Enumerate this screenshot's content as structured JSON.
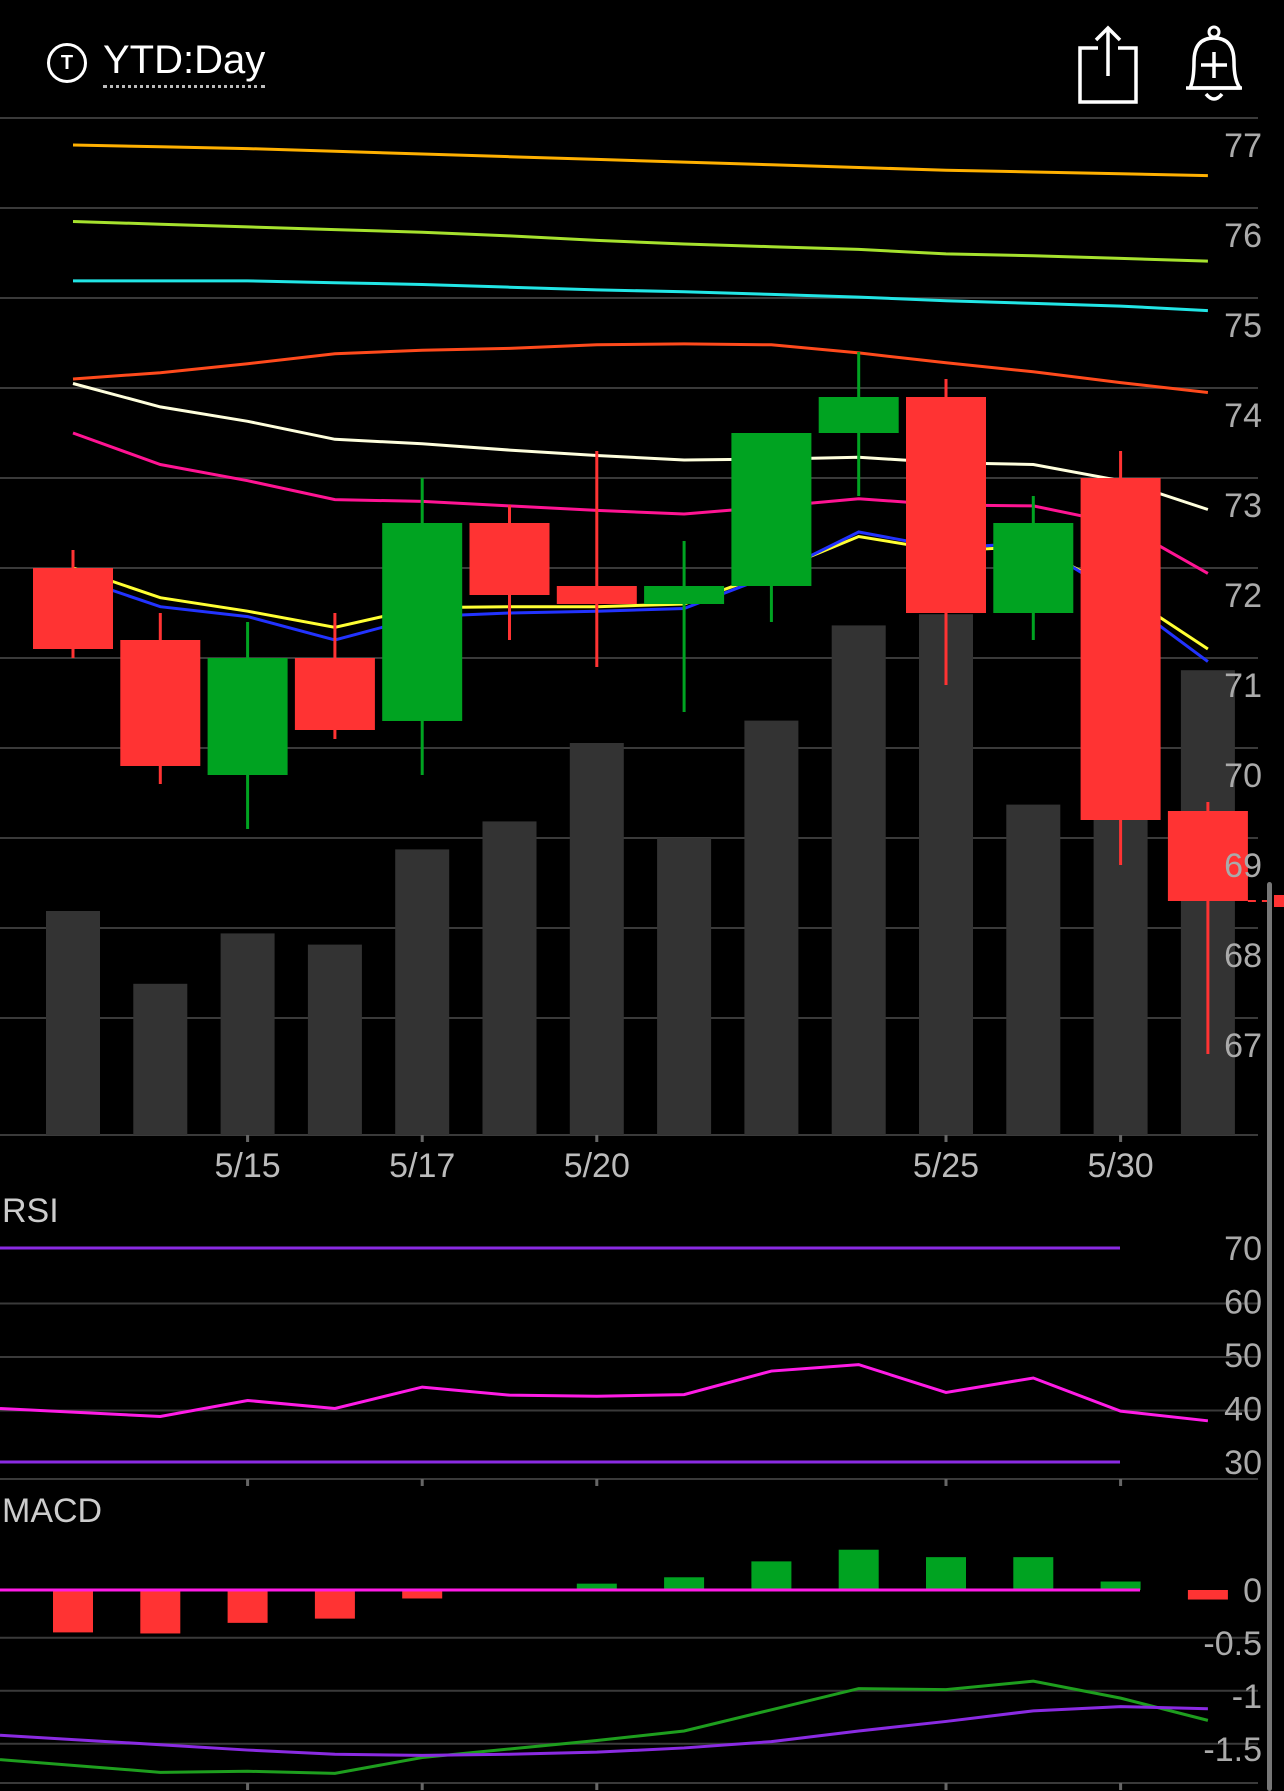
{
  "header": {
    "badge_letter": "T",
    "title": "YTD:Day",
    "share_icon": "share-icon",
    "alert_icon": "add-alert-icon"
  },
  "colors": {
    "up": "#00A321",
    "down": "#FF3333",
    "volume": "#333333",
    "grid": "#3A3A3A",
    "rsi_line": "#FF1CE6",
    "rsi_band": "#8A2BE2",
    "macd_line": "#1E9E1E",
    "macd_signal": "#8A2BE2",
    "macd_zero": "#FF1CE6",
    "last_price": "#FF3333"
  },
  "chart_data": [
    {
      "type": "candlestick",
      "ylim": [
        66,
        77.3
      ],
      "y_ticks": [
        77,
        76,
        75,
        74,
        73,
        72,
        71,
        70,
        69,
        68,
        67
      ],
      "x_labels": [
        "5/15",
        "5/17",
        "5/20",
        "5/25",
        "5/30"
      ],
      "x_label_index": [
        2,
        4,
        6,
        10,
        12
      ],
      "candles": [
        {
          "o": 72.3,
          "h": 72.5,
          "l": 71.3,
          "c": 71.4
        },
        {
          "o": 71.5,
          "h": 71.8,
          "l": 69.9,
          "c": 70.1
        },
        {
          "o": 70.0,
          "h": 71.7,
          "l": 69.4,
          "c": 71.3
        },
        {
          "o": 71.3,
          "h": 71.8,
          "l": 70.4,
          "c": 70.5
        },
        {
          "o": 70.6,
          "h": 73.3,
          "l": 70.0,
          "c": 72.8
        },
        {
          "o": 72.8,
          "h": 73.0,
          "l": 71.5,
          "c": 72.0
        },
        {
          "o": 72.1,
          "h": 73.6,
          "l": 71.2,
          "c": 71.9
        },
        {
          "o": 71.9,
          "h": 72.6,
          "l": 70.7,
          "c": 72.1
        },
        {
          "o": 72.1,
          "h": 73.8,
          "l": 71.7,
          "c": 73.8
        },
        {
          "o": 73.8,
          "h": 74.7,
          "l": 73.1,
          "c": 74.2
        },
        {
          "o": 74.2,
          "h": 74.4,
          "l": 71.0,
          "c": 71.8
        },
        {
          "o": 71.8,
          "h": 73.1,
          "l": 71.5,
          "c": 72.8
        },
        {
          "o": 73.3,
          "h": 73.6,
          "l": 69.0,
          "c": 69.5
        },
        {
          "o": 69.6,
          "h": 69.7,
          "l": 66.9,
          "c": 68.6
        }
      ],
      "volume_relative": [
        0.4,
        0.27,
        0.36,
        0.34,
        0.51,
        0.56,
        0.7,
        0.53,
        0.74,
        0.91,
        0.93,
        0.59,
        0.74,
        0.83
      ],
      "last_price": 68.6,
      "moving_averages": [
        {
          "color": "#FFB000",
          "values": [
            77.0,
            76.98,
            76.96,
            76.93,
            76.9,
            76.87,
            76.84,
            76.81,
            76.78,
            76.75,
            76.72,
            76.7,
            76.68,
            76.66
          ]
        },
        {
          "color": "#A6E22E",
          "values": [
            76.15,
            76.12,
            76.09,
            76.06,
            76.03,
            75.99,
            75.94,
            75.9,
            75.87,
            75.84,
            75.79,
            75.77,
            75.74,
            75.71
          ]
        },
        {
          "color": "#22E5E5",
          "values": [
            75.49,
            75.49,
            75.49,
            75.47,
            75.45,
            75.42,
            75.39,
            75.37,
            75.34,
            75.31,
            75.27,
            75.24,
            75.21,
            75.16
          ]
        },
        {
          "color": "#FF4A1C",
          "values": [
            74.4,
            74.47,
            74.57,
            74.68,
            74.72,
            74.74,
            74.78,
            74.79,
            74.78,
            74.69,
            74.58,
            74.48,
            74.36,
            74.25
          ]
        },
        {
          "color": "#FFFFDD",
          "values": [
            74.35,
            74.09,
            73.93,
            73.73,
            73.68,
            73.61,
            73.55,
            73.5,
            73.51,
            73.53,
            73.47,
            73.45,
            73.27,
            72.95
          ]
        },
        {
          "color": "#FF1493",
          "values": [
            73.8,
            73.45,
            73.27,
            73.06,
            73.04,
            72.99,
            72.94,
            72.9,
            72.98,
            73.07,
            73.0,
            72.99,
            72.79,
            72.24
          ]
        },
        {
          "color": "#FFFF33",
          "values": [
            72.3,
            71.97,
            71.82,
            71.64,
            71.86,
            71.87,
            71.87,
            71.9,
            72.25,
            72.65,
            72.49,
            72.54,
            72.04,
            71.4
          ]
        },
        {
          "color": "#2233FF",
          "values": [
            72.2,
            71.87,
            71.76,
            71.5,
            71.76,
            71.8,
            71.82,
            71.85,
            72.22,
            72.7,
            72.52,
            72.58,
            71.98,
            71.26
          ]
        }
      ]
    },
    {
      "type": "line",
      "title": "RSI",
      "ylim": [
        30,
        70
      ],
      "y_ticks": [
        70,
        60,
        50,
        40,
        30
      ],
      "bands": [
        70,
        30
      ],
      "values": [
        38.5,
        41.5,
        40.0,
        44.0,
        42.5,
        42.3,
        42.6,
        47.0,
        48.2,
        43.0,
        45.7,
        39.5,
        37.7
      ],
      "first_point_index": 1
    },
    {
      "type": "bar+line",
      "title": "MACD",
      "ylim": [
        -1.8,
        0.3
      ],
      "y_ticks": [
        0,
        -0.5,
        -1,
        -1.5
      ],
      "histogram": [
        -0.4,
        -0.41,
        -0.31,
        -0.27,
        -0.08,
        0.0,
        0.06,
        0.12,
        0.27,
        0.38,
        0.31,
        0.31,
        0.08,
        -0.09
      ],
      "macd": [
        -1.6,
        -1.72,
        -1.71,
        -1.73,
        -1.58,
        -1.5,
        -1.42,
        -1.33,
        -1.13,
        -0.93,
        -0.94,
        -0.86,
        -1.02,
        -1.23
      ],
      "signal": [
        -1.37,
        -1.46,
        -1.51,
        -1.55,
        -1.56,
        -1.55,
        -1.53,
        -1.49,
        -1.43,
        -1.33,
        -1.24,
        -1.14,
        -1.1,
        -1.12
      ],
      "start_index": 0
    }
  ]
}
